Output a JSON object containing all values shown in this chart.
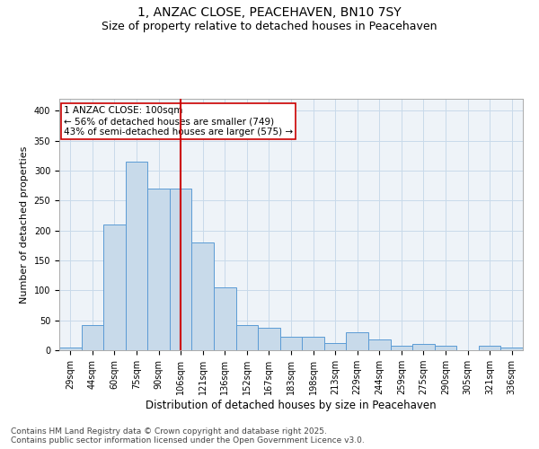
{
  "title_line1": "1, ANZAC CLOSE, PEACEHAVEN, BN10 7SY",
  "title_line2": "Size of property relative to detached houses in Peacehaven",
  "xlabel": "Distribution of detached houses by size in Peacehaven",
  "ylabel": "Number of detached properties",
  "categories": [
    "29sqm",
    "44sqm",
    "60sqm",
    "75sqm",
    "90sqm",
    "106sqm",
    "121sqm",
    "136sqm",
    "152sqm",
    "167sqm",
    "183sqm",
    "198sqm",
    "213sqm",
    "229sqm",
    "244sqm",
    "259sqm",
    "275sqm",
    "290sqm",
    "305sqm",
    "321sqm",
    "336sqm"
  ],
  "values": [
    5,
    42,
    210,
    315,
    270,
    270,
    180,
    105,
    42,
    38,
    22,
    22,
    12,
    30,
    18,
    7,
    10,
    7,
    0,
    8,
    5
  ],
  "bar_color": "#c8daea",
  "bar_edge_color": "#5b9bd5",
  "vline_color": "#cc0000",
  "annotation_text": "1 ANZAC CLOSE: 100sqm\n← 56% of detached houses are smaller (749)\n43% of semi-detached houses are larger (575) →",
  "annotation_box_edge": "#cc0000",
  "annotation_fontsize": 7.5,
  "ylim": [
    0,
    420
  ],
  "yticks": [
    0,
    50,
    100,
    150,
    200,
    250,
    300,
    350,
    400
  ],
  "grid_color": "#c8daea",
  "background_color": "#eef3f8",
  "footer": "Contains HM Land Registry data © Crown copyright and database right 2025.\nContains public sector information licensed under the Open Government Licence v3.0.",
  "title_fontsize": 10,
  "subtitle_fontsize": 9,
  "xlabel_fontsize": 8.5,
  "ylabel_fontsize": 8,
  "footer_fontsize": 6.5,
  "tick_fontsize": 7
}
